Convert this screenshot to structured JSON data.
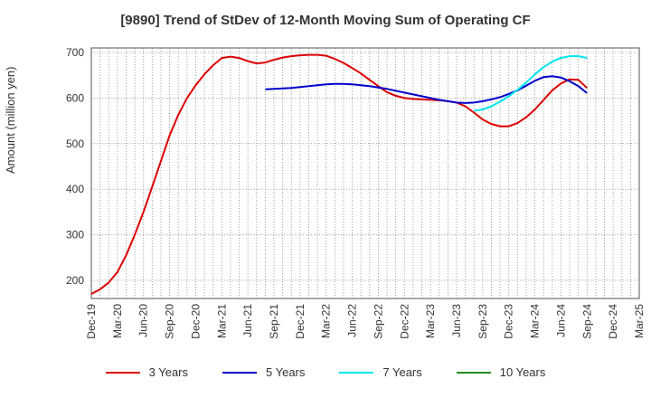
{
  "chart_data": {
    "type": "line",
    "title": "[9890]  Trend of StDev of 12-Month Moving Sum of Operating CF",
    "ylabel": "Amount (million yen)",
    "xlabel": "",
    "ylim": [
      160,
      710
    ],
    "yticks": [
      200,
      300,
      400,
      500,
      600,
      700
    ],
    "xticks": [
      "Dec-19",
      "Mar-20",
      "Jun-20",
      "Sep-20",
      "Dec-20",
      "Mar-21",
      "Jun-21",
      "Sep-21",
      "Dec-21",
      "Mar-22",
      "Jun-22",
      "Sep-22",
      "Dec-22",
      "Mar-23",
      "Jun-23",
      "Sep-23",
      "Dec-23",
      "Mar-24",
      "Jun-24",
      "Sep-24",
      "Dec-24",
      "Mar-25"
    ],
    "grid": true,
    "legend_position": "bottom",
    "series": [
      {
        "name": "3 Years",
        "color": "#dd0000",
        "points": [
          [
            "Dec-19",
            170
          ],
          [
            "Jan-20",
            180
          ],
          [
            "Feb-20",
            195
          ],
          [
            "Mar-20",
            218
          ],
          [
            "Apr-20",
            255
          ],
          [
            "May-20",
            300
          ],
          [
            "Jun-20",
            350
          ],
          [
            "Jul-20",
            405
          ],
          [
            "Aug-20",
            462
          ],
          [
            "Sep-20",
            518
          ],
          [
            "Oct-20",
            563
          ],
          [
            "Nov-20",
            600
          ],
          [
            "Dec-20",
            628
          ],
          [
            "Jan-21",
            652
          ],
          [
            "Feb-21",
            672
          ],
          [
            "Mar-21",
            688
          ],
          [
            "Apr-21",
            691
          ],
          [
            "May-21",
            688
          ],
          [
            "Jun-21",
            681
          ],
          [
            "Jul-21",
            676
          ],
          [
            "Aug-21",
            678
          ],
          [
            "Sep-21",
            684
          ],
          [
            "Oct-21",
            689
          ],
          [
            "Nov-21",
            692
          ],
          [
            "Dec-21",
            694
          ],
          [
            "Jan-22",
            695
          ],
          [
            "Feb-22",
            695
          ],
          [
            "Mar-22",
            693
          ],
          [
            "Apr-22",
            686
          ],
          [
            "May-22",
            677
          ],
          [
            "Jun-22",
            666
          ],
          [
            "Jul-22",
            654
          ],
          [
            "Aug-22",
            640
          ],
          [
            "Sep-22",
            626
          ],
          [
            "Oct-22",
            613
          ],
          [
            "Nov-22",
            605
          ],
          [
            "Dec-22",
            600
          ],
          [
            "Jan-23",
            598
          ],
          [
            "Feb-23",
            597
          ],
          [
            "Mar-23",
            596
          ],
          [
            "Apr-23",
            595
          ],
          [
            "May-23",
            593
          ],
          [
            "Jun-23",
            590
          ],
          [
            "Jul-23",
            582
          ],
          [
            "Aug-23",
            568
          ],
          [
            "Sep-23",
            553
          ],
          [
            "Oct-23",
            543
          ],
          [
            "Nov-23",
            538
          ],
          [
            "Dec-23",
            538
          ],
          [
            "Jan-24",
            545
          ],
          [
            "Feb-24",
            558
          ],
          [
            "Mar-24",
            575
          ],
          [
            "Apr-24",
            596
          ],
          [
            "May-24",
            617
          ],
          [
            "Jun-24",
            632
          ],
          [
            "Jul-24",
            641
          ],
          [
            "Aug-24",
            640
          ],
          [
            "Sep-24",
            622
          ]
        ]
      },
      {
        "name": "5 Years",
        "color": "#0000cc",
        "points": [
          [
            "Aug-21",
            619
          ],
          [
            "Sep-21",
            620
          ],
          [
            "Oct-21",
            621
          ],
          [
            "Nov-21",
            622
          ],
          [
            "Dec-21",
            624
          ],
          [
            "Jan-22",
            626
          ],
          [
            "Feb-22",
            628
          ],
          [
            "Mar-22",
            630
          ],
          [
            "Apr-22",
            631
          ],
          [
            "May-22",
            631
          ],
          [
            "Jun-22",
            630
          ],
          [
            "Jul-22",
            628
          ],
          [
            "Aug-22",
            626
          ],
          [
            "Sep-22",
            623
          ],
          [
            "Oct-22",
            620
          ],
          [
            "Nov-22",
            616
          ],
          [
            "Dec-22",
            612
          ],
          [
            "Jan-23",
            608
          ],
          [
            "Feb-23",
            604
          ],
          [
            "Mar-23",
            600
          ],
          [
            "Apr-23",
            596
          ],
          [
            "May-23",
            593
          ],
          [
            "Jun-23",
            590
          ],
          [
            "Jul-23",
            589
          ],
          [
            "Aug-23",
            590
          ],
          [
            "Sep-23",
            593
          ],
          [
            "Oct-23",
            597
          ],
          [
            "Nov-23",
            602
          ],
          [
            "Dec-23",
            609
          ],
          [
            "Jan-24",
            617
          ],
          [
            "Feb-24",
            627
          ],
          [
            "Mar-24",
            638
          ],
          [
            "Apr-24",
            646
          ],
          [
            "May-24",
            648
          ],
          [
            "Jun-24",
            645
          ],
          [
            "Jul-24",
            637
          ],
          [
            "Aug-24",
            626
          ],
          [
            "Sep-24",
            611
          ]
        ]
      },
      {
        "name": "7 Years",
        "color": "#00e5ee",
        "points": [
          [
            "Aug-23",
            572
          ],
          [
            "Sep-23",
            575
          ],
          [
            "Oct-23",
            582
          ],
          [
            "Nov-23",
            592
          ],
          [
            "Dec-23",
            604
          ],
          [
            "Jan-24",
            618
          ],
          [
            "Feb-24",
            634
          ],
          [
            "Mar-24",
            652
          ],
          [
            "Apr-24",
            668
          ],
          [
            "May-24",
            680
          ],
          [
            "Jun-24",
            688
          ],
          [
            "Jul-24",
            692
          ],
          [
            "Aug-24",
            692
          ],
          [
            "Sep-24",
            688
          ]
        ]
      },
      {
        "name": "10 Years",
        "color": "#228b22",
        "points": []
      }
    ]
  }
}
